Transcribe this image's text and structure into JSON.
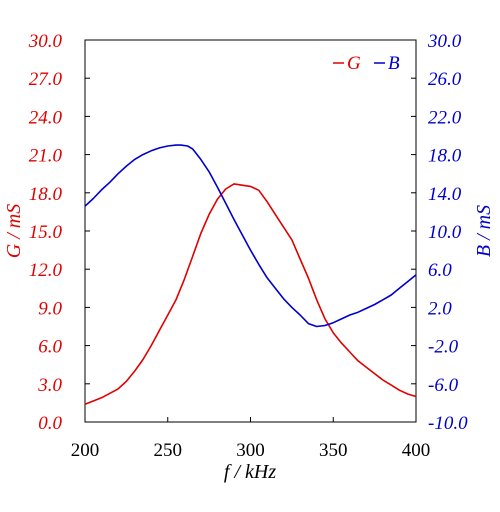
{
  "chart_data": {
    "type": "line",
    "xlabel": "f / kHz",
    "ylabel_left": "G / mS",
    "ylabel_right": "B / mS",
    "xlim": [
      200,
      400
    ],
    "ylim_left": [
      0.0,
      30.0
    ],
    "ylim_right": [
      -10.0,
      30.0
    ],
    "x_ticks": [
      "200",
      "250",
      "300",
      "350",
      "400"
    ],
    "y_left_ticks": [
      "0.0",
      "3.0",
      "6.0",
      "9.0",
      "12.0",
      "15.0",
      "18.0",
      "21.0",
      "24.0",
      "27.0",
      "30.0"
    ],
    "y_right_ticks": [
      "-10.0",
      "-6.0",
      "-2.0",
      "2.0",
      "6.0",
      "10.0",
      "14.0",
      "18.0",
      "22.0",
      "26.0",
      "30.0"
    ],
    "legend_position": "top-right",
    "grid": false,
    "colors": {
      "G": "#e00000",
      "B": "#0000cc",
      "axes": "#000000"
    },
    "series": [
      {
        "name": "G",
        "axis": "left",
        "x": [
          200,
          210,
          220,
          225,
          230,
          235,
          240,
          245,
          250,
          255,
          260,
          265,
          270,
          275,
          280,
          285,
          290,
          295,
          300,
          305,
          310,
          315,
          320,
          325,
          330,
          335,
          340,
          345,
          350,
          355,
          360,
          365,
          370,
          375,
          380,
          385,
          390,
          395,
          400
        ],
        "values": [
          1.4,
          1.9,
          2.6,
          3.2,
          4.0,
          4.9,
          6.0,
          7.2,
          8.4,
          9.6,
          11.2,
          13.0,
          14.8,
          16.3,
          17.5,
          18.3,
          18.7,
          18.6,
          18.5,
          18.2,
          17.3,
          16.3,
          15.3,
          14.3,
          12.8,
          11.3,
          9.6,
          8.1,
          7.0,
          6.2,
          5.5,
          4.8,
          4.3,
          3.8,
          3.3,
          2.9,
          2.5,
          2.2,
          2.0
        ]
      },
      {
        "name": "B",
        "axis": "right",
        "x": [
          200,
          205,
          210,
          215,
          220,
          225,
          230,
          235,
          240,
          245,
          250,
          255,
          258,
          262,
          265,
          270,
          275,
          280,
          285,
          290,
          295,
          300,
          305,
          310,
          315,
          320,
          325,
          330,
          335,
          340,
          345,
          350,
          355,
          360,
          365,
          370,
          375,
          380,
          385,
          390,
          395,
          400
        ],
        "values": [
          12.6,
          13.4,
          14.3,
          15.1,
          16.0,
          16.8,
          17.5,
          18.0,
          18.4,
          18.7,
          18.9,
          19.0,
          19.0,
          18.9,
          18.6,
          17.5,
          16.2,
          14.6,
          12.9,
          11.2,
          9.6,
          8.0,
          6.5,
          5.1,
          4.0,
          2.9,
          2.0,
          1.2,
          0.3,
          0.0,
          0.1,
          0.4,
          0.8,
          1.2,
          1.5,
          1.9,
          2.3,
          2.8,
          3.3,
          4.0,
          4.7,
          5.4
        ]
      }
    ]
  }
}
